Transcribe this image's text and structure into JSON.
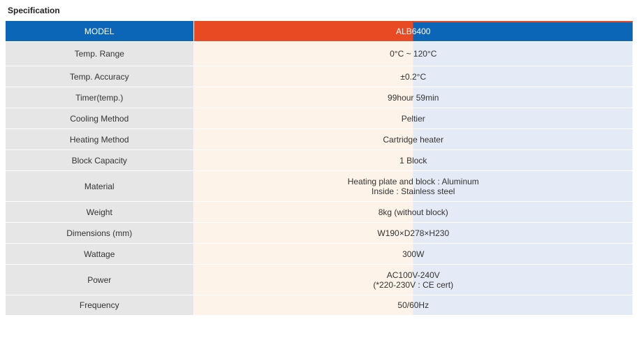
{
  "section_title": "Specification",
  "header": {
    "label": "MODEL",
    "value": "ALB6400"
  },
  "rows": [
    {
      "label": "Temp. Range",
      "lines": [
        "0°C ~ 120°C"
      ]
    },
    {
      "label": "Temp. Accuracy",
      "lines": [
        "±0.2°C"
      ]
    },
    {
      "label": "Timer(temp.)",
      "lines": [
        "99hour 59min"
      ]
    },
    {
      "label": "Cooling Method",
      "lines": [
        "Peltier"
      ]
    },
    {
      "label": "Heating Method",
      "lines": [
        "Cartridge heater"
      ]
    },
    {
      "label": "Block Capacity",
      "lines": [
        "1 Block"
      ]
    },
    {
      "label": "Material",
      "lines": [
        "Heating plate and block : Aluminum",
        "Inside : Stainless steel"
      ]
    },
    {
      "label": "Weight",
      "lines": [
        "8kg (without block)"
      ]
    },
    {
      "label": "Dimensions (mm)",
      "lines": [
        "W190×D278×H230"
      ]
    },
    {
      "label": "Wattage",
      "lines": [
        "300W"
      ]
    },
    {
      "label": "Power",
      "lines": [
        "AC100V-240V",
        "(*220-230V : CE cert)"
      ]
    },
    {
      "label": "Frequency",
      "lines": [
        "50/60Hz"
      ]
    }
  ],
  "colors": {
    "header_blue": "#0b66b8",
    "header_orange": "#e84a24",
    "label_bg": "#e6e6e6",
    "value_bg_left": "#fdf3e8",
    "value_bg_right": "#e4eaf6"
  }
}
